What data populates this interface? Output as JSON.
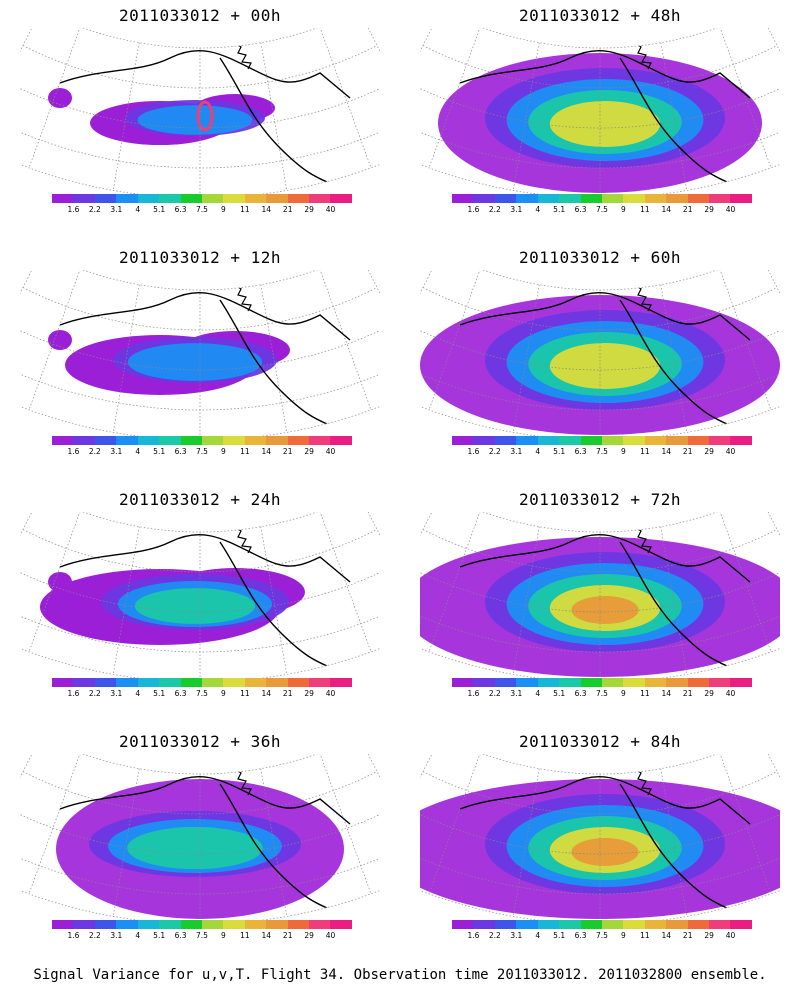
{
  "colorbar": {
    "labels": [
      "1.6",
      "2.2",
      "3.1",
      "4",
      "5.1",
      "6.3",
      "7.5",
      "9",
      "11",
      "14",
      "21",
      "29",
      "40"
    ],
    "colors": [
      "#9c1fd8",
      "#6c38e2",
      "#3f55ea",
      "#1b8ff2",
      "#18b7d8",
      "#1bc8a8",
      "#19cc2e",
      "#a4d83a",
      "#d9dc3b",
      "#e9b43a",
      "#e89a3a",
      "#ee6a3a",
      "#ef3c7a",
      "#ea1e82"
    ]
  },
  "panels": [
    {
      "title": "2011033012 + 00h",
      "blobs": []
    },
    {
      "title": "2011033012 + 12h"
    },
    {
      "title": "2011033012 + 24h"
    },
    {
      "title": "2011033012 + 36h"
    },
    {
      "title": "2011033012 + 48h"
    },
    {
      "title": "2011033012 + 60h"
    },
    {
      "title": "2011033012 + 72h"
    },
    {
      "title": "2011033012 + 84h"
    }
  ],
  "footer": "Signal Variance for u,v,T. Flight 34. Observation time 2011033012. 2011032800 ensemble."
}
